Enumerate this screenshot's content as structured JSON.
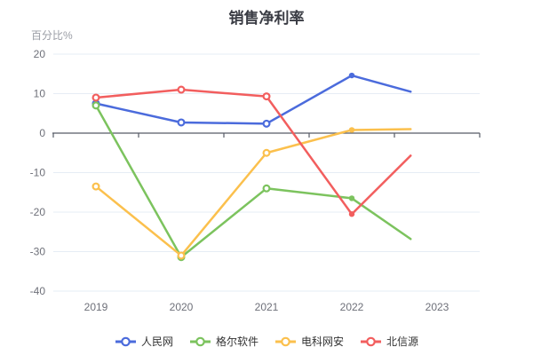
{
  "title": "销售净利率",
  "y_axis_unit_label": "百分比%",
  "chart_data": {
    "type": "line",
    "title": "销售净利率",
    "ylabel": "百分比%",
    "xlabel": "",
    "x_tick_labels": [
      "2019",
      "2020",
      "2021",
      "2022",
      "2023"
    ],
    "y_ticks": [
      20,
      10,
      0,
      -10,
      -20,
      -30,
      -40
    ],
    "ylim": [
      -40,
      20
    ],
    "grid": true,
    "legend_position": "bottom",
    "x_year_offsets": [
      0,
      1,
      2,
      3,
      3.69
    ],
    "marker_styles": [
      "hollow",
      "hollow",
      "hollow",
      "filled",
      "none"
    ],
    "series": [
      {
        "name": "人民网",
        "color": "#4B6BDC",
        "values": [
          7.5,
          2.7,
          2.4,
          14.6,
          10.5
        ]
      },
      {
        "name": "格尔软件",
        "color": "#7CC35E",
        "values": [
          7.0,
          -31.4,
          -14.0,
          -16.5,
          -26.8
        ]
      },
      {
        "name": "电科网安",
        "color": "#FBC04D",
        "values": [
          -13.5,
          -31.0,
          -5.0,
          0.8,
          1.0
        ]
      },
      {
        "name": "北信源",
        "color": "#F25E5E",
        "values": [
          9.0,
          11.0,
          9.3,
          -20.5,
          -5.7
        ]
      }
    ],
    "colors": {
      "grid_line": "#E6ECF5",
      "axis_line": "#565B66",
      "axis_label": "#6E7079",
      "title_text": "#3A3C44",
      "unit_label": "#9A9DA5",
      "legend_text": "#333333"
    }
  }
}
